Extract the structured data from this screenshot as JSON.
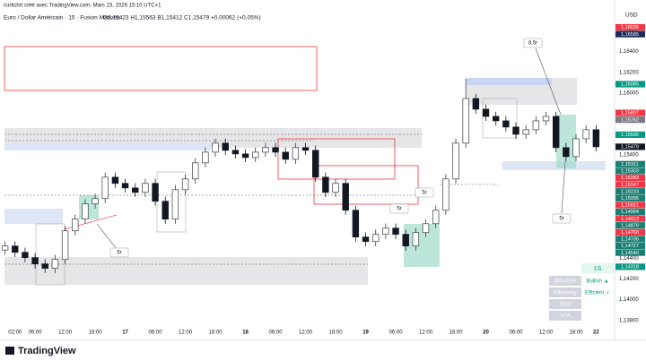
{
  "header": {
    "credit": "curtichrt créé avec TradingView.com, Mars 23, 2026 15:10 UTC+1",
    "symbol": "Euro / Dollar Américain · 15 · Fusion Markets",
    "ohlc": "O1,15423 H1,15563 B1,15412 C1,15479 +0,00062 (+0,05%)"
  },
  "chart_data": {
    "type": "candlestick",
    "x": [
      0,
      2,
      4,
      6,
      8,
      10,
      12,
      14,
      16,
      18,
      20,
      22,
      24,
      26,
      28,
      30,
      32,
      34,
      36,
      38,
      40,
      42,
      44,
      46,
      48,
      50,
      52,
      54,
      56,
      58,
      60,
      62,
      64,
      66,
      68,
      70,
      72,
      74,
      76,
      78,
      80,
      82,
      84,
      86,
      88,
      90,
      92,
      94,
      96,
      98,
      100,
      102,
      104,
      106,
      108,
      110,
      112,
      114,
      116,
      118
    ],
    "open": [
      1.1448,
      1.14519,
      1.14458,
      1.14407,
      1.14346,
      1.14303,
      1.14389,
      1.14666,
      1.14779,
      1.14926,
      1.14978,
      1.15185,
      1.15125,
      1.15081,
      1.15038,
      1.15125,
      1.14952,
      1.14779,
      1.15064,
      1.15168,
      1.15324,
      1.15427,
      1.15514,
      1.15445,
      1.1541,
      1.15375,
      1.15427,
      1.15471,
      1.15427,
      1.15358,
      1.15471,
      1.15445,
      1.15185,
      1.15038,
      1.15125,
      1.14865,
      1.14606,
      1.14562,
      1.14632,
      1.14692,
      1.14632,
      1.14519,
      1.14649,
      1.14735,
      1.14865,
      1.15168,
      1.15514,
      1.15946,
      1.15843,
      1.15773,
      1.1573,
      1.1567,
      1.156,
      1.15644,
      1.1573,
      1.15773,
      1.15471,
      1.15384,
      1.15557,
      1.15644
    ],
    "high": [
      1.14564,
      1.14564,
      1.14503,
      1.14452,
      1.14391,
      1.14434,
      1.14711,
      1.14824,
      1.14971,
      1.15023,
      1.1523,
      1.1523,
      1.1517,
      1.15126,
      1.1517,
      1.1517,
      1.14997,
      1.15109,
      1.15213,
      1.15369,
      1.15472,
      1.15559,
      1.15559,
      1.1549,
      1.15455,
      1.15472,
      1.15516,
      1.15516,
      1.15472,
      1.15516,
      1.15516,
      1.1549,
      1.1523,
      1.1517,
      1.1517,
      1.1491,
      1.14651,
      1.14677,
      1.14737,
      1.14737,
      1.14677,
      1.14694,
      1.1478,
      1.1491,
      1.15213,
      1.15559,
      1.16137,
      1.15991,
      1.15888,
      1.15818,
      1.15775,
      1.15715,
      1.15689,
      1.15775,
      1.15818,
      1.15818,
      1.15516,
      1.15602,
      1.15689,
      1.15689
    ],
    "low": [
      1.14435,
      1.14413,
      1.14362,
      1.14301,
      1.14258,
      1.14258,
      1.14344,
      1.14621,
      1.14734,
      1.14881,
      1.14933,
      1.1508,
      1.15036,
      1.14993,
      1.14993,
      1.14907,
      1.14734,
      1.14734,
      1.15019,
      1.15123,
      1.15279,
      1.15382,
      1.154,
      1.15365,
      1.1533,
      1.1533,
      1.15382,
      1.15382,
      1.15313,
      1.15313,
      1.154,
      1.1514,
      1.14993,
      1.14993,
      1.1482,
      1.14561,
      1.14517,
      1.14517,
      1.14587,
      1.14587,
      1.14474,
      1.14474,
      1.14604,
      1.1469,
      1.1482,
      1.15123,
      1.15469,
      1.15798,
      1.15728,
      1.15685,
      1.15625,
      1.15555,
      1.15555,
      1.15599,
      1.15685,
      1.15426,
      1.15339,
      1.15339,
      1.15512,
      1.15434
    ],
    "close": [
      1.14519,
      1.14458,
      1.14407,
      1.14346,
      1.14303,
      1.14389,
      1.14666,
      1.14779,
      1.14926,
      1.14978,
      1.15185,
      1.15125,
      1.15081,
      1.15038,
      1.15125,
      1.14952,
      1.14779,
      1.15064,
      1.15168,
      1.15324,
      1.15427,
      1.15514,
      1.15445,
      1.1541,
      1.15375,
      1.15427,
      1.15471,
      1.15427,
      1.15358,
      1.15471,
      1.15445,
      1.15185,
      1.15038,
      1.15125,
      1.14865,
      1.14606,
      1.14562,
      1.14632,
      1.14692,
      1.14632,
      1.14519,
      1.14649,
      1.14735,
      1.14865,
      1.15168,
      1.15514,
      1.15946,
      1.15843,
      1.15773,
      1.1573,
      1.1567,
      1.156,
      1.15644,
      1.1573,
      1.15773,
      1.15471,
      1.15384,
      1.15557,
      1.15644,
      1.15479
    ],
    "colors": {
      "up": "#3a3d45",
      "down": "#131722"
    },
    "xlim": [
      -1,
      121.7
    ],
    "ylim": [
      1.1365,
      1.1683
    ],
    "xticks": [
      {
        "value": 2,
        "label": "02:00"
      },
      {
        "value": 6,
        "label": "06:00"
      },
      {
        "value": 12,
        "label": "12:00"
      },
      {
        "value": 18,
        "label": "18:00"
      },
      {
        "value": 24,
        "label": "17"
      },
      {
        "value": 30,
        "label": "06:00"
      },
      {
        "value": 36,
        "label": "12:00"
      },
      {
        "value": 42,
        "label": "18:00"
      },
      {
        "value": 48,
        "label": "18"
      },
      {
        "value": 54,
        "label": "06:00"
      },
      {
        "value": 60,
        "label": "12:00"
      },
      {
        "value": 66,
        "label": "18:00"
      },
      {
        "value": 72,
        "label": "19"
      },
      {
        "value": 78,
        "label": "06:00"
      },
      {
        "value": 84,
        "label": "12:00"
      },
      {
        "value": 90,
        "label": "18:00"
      },
      {
        "value": 96,
        "label": "20"
      },
      {
        "value": 102,
        "label": "06:00"
      },
      {
        "value": 108,
        "label": "12:00"
      },
      {
        "value": 114,
        "label": "18:00"
      },
      {
        "value": 118,
        "label": "22"
      }
    ],
    "yticks": [
      {
        "value": 1.138,
        "label": "1,13800"
      },
      {
        "value": 1.14,
        "label": "1,14000"
      },
      {
        "value": 1.142,
        "label": "1,14200"
      },
      {
        "value": 1.144,
        "label": "1,14400"
      },
      {
        "value": 1.146,
        "label": "1,14600"
      },
      {
        "value": 1.148,
        "label": "1,14800"
      },
      {
        "value": 1.15,
        "label": "1,15000"
      },
      {
        "value": 1.152,
        "label": "1,15200"
      },
      {
        "value": 1.154,
        "label": "1,15400"
      },
      {
        "value": 1.156,
        "label": "1,15600"
      },
      {
        "value": 1.158,
        "label": "1,15800"
      },
      {
        "value": 1.16,
        "label": "1,16000"
      },
      {
        "value": 1.162,
        "label": "1,16200"
      },
      {
        "value": 1.164,
        "label": "1,16400"
      },
      {
        "value": 1.166,
        "label": "1,16600"
      }
    ],
    "currency": "USD",
    "price_labels": [
      {
        "value": 1.16635,
        "label": "1,16635",
        "color": "#f23645"
      },
      {
        "value": 1.16585,
        "label": "1,16585",
        "color": "#1e2a5a"
      },
      {
        "value": 1.16085,
        "label": "1,16085",
        "color": "#089981"
      },
      {
        "value": 1.15807,
        "label": "1,15807",
        "color": "#f23645"
      },
      {
        "value": 1.15762,
        "label": "1,15762",
        "color": "#787b86"
      },
      {
        "value": 1.15596,
        "label": "1,15596",
        "color": "#089981"
      },
      {
        "value": 1.15479,
        "label": "1,15479",
        "color": "#131722"
      },
      {
        "value": 1.15311,
        "label": "1,15311",
        "color": "#1b7f73"
      },
      {
        "value": 1.15303,
        "label": "1,15303",
        "color": "#1b7f73"
      },
      {
        "value": 1.15283,
        "label": "1,15283",
        "color": "#f23645"
      },
      {
        "value": 1.15247,
        "label": "1,15247",
        "color": "#f23645"
      },
      {
        "value": 1.15233,
        "label": "1,15233",
        "color": "#1b7f73"
      },
      {
        "value": 1.15095,
        "label": "1,15095",
        "color": "#1b7f73"
      },
      {
        "value": 1.15021,
        "label": "1,15021",
        "color": "#f23645"
      },
      {
        "value": 1.14994,
        "label": "1,14994",
        "color": "#1b7f73"
      },
      {
        "value": 1.14913,
        "label": "1,14913",
        "color": "#f23645"
      },
      {
        "value": 1.14879,
        "label": "1,14879",
        "color": "#1b7f73"
      },
      {
        "value": 1.14768,
        "label": "1,14768",
        "color": "#f23645"
      },
      {
        "value": 1.14735,
        "label": "1,14735",
        "color": "#1b7f73"
      },
      {
        "value": 1.14727,
        "label": "1,14727",
        "color": "#1b7f73"
      },
      {
        "value": 1.1454,
        "label": "1,14540",
        "color": "#1b7f73"
      },
      {
        "value": 1.14318,
        "label": "1,14318",
        "color": "#089981"
      }
    ],
    "annotations": [
      "8,5r",
      "5r",
      "5r",
      "5r",
      "5r"
    ]
  },
  "panel": {
    "timeframe": "1S",
    "rows": [
      {
        "label": "Structure",
        "status": "Bullish ▲"
      },
      {
        "label": "Efficiency",
        "status": "Efficient ✓"
      },
      {
        "label": "MSU"
      },
      {
        "label": "VTA"
      }
    ]
  },
  "logo": "TradingView"
}
